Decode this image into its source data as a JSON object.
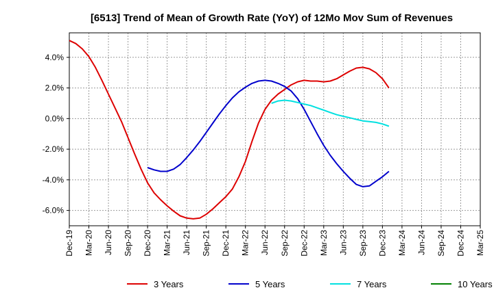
{
  "chart_data": {
    "type": "line",
    "title": "[6513]  Trend of Mean of Growth Rate (YoY) of 12Mo Mov Sum of Revenues",
    "xlabel": "",
    "ylabel": "",
    "x_ticks": [
      "Dec-19",
      "Mar-20",
      "Jun-20",
      "Sep-20",
      "Dec-20",
      "Mar-21",
      "Jun-21",
      "Sep-21",
      "Dec-21",
      "Mar-22",
      "Jun-22",
      "Sep-22",
      "Dec-22",
      "Mar-23",
      "Jun-23",
      "Sep-23",
      "Dec-23",
      "Mar-24",
      "Jun-24",
      "Sep-24",
      "Dec-24",
      "Mar-25"
    ],
    "y_ticks": [
      4.0,
      2.0,
      0.0,
      -2.0,
      -4.0,
      -6.0
    ],
    "y_tick_labels": [
      "4.0%",
      "2.0%",
      "0.0%",
      "-2.0%",
      "-4.0%",
      "-6.0%"
    ],
    "ylim": [
      -7.0,
      5.6
    ],
    "grid": true,
    "legend_position": "bottom",
    "series": [
      {
        "name": "3 Years",
        "color": "#dd0000",
        "points": [
          [
            0,
            5.1
          ],
          [
            1,
            4.9
          ],
          [
            2,
            4.55
          ],
          [
            3,
            4.05
          ],
          [
            4,
            3.35
          ],
          [
            5,
            2.5
          ],
          [
            6,
            1.6
          ],
          [
            7,
            0.7
          ],
          [
            8,
            -0.2
          ],
          [
            9,
            -1.25
          ],
          [
            10,
            -2.3
          ],
          [
            11,
            -3.3
          ],
          [
            12,
            -4.2
          ],
          [
            13,
            -4.85
          ],
          [
            14,
            -5.3
          ],
          [
            15,
            -5.7
          ],
          [
            16,
            -6.05
          ],
          [
            17,
            -6.35
          ],
          [
            18,
            -6.5
          ],
          [
            19,
            -6.55
          ],
          [
            20,
            -6.5
          ],
          [
            21,
            -6.25
          ],
          [
            22,
            -5.9
          ],
          [
            23,
            -5.5
          ],
          [
            24,
            -5.1
          ],
          [
            25,
            -4.6
          ],
          [
            26,
            -3.8
          ],
          [
            27,
            -2.8
          ],
          [
            28,
            -1.5
          ],
          [
            29,
            -0.3
          ],
          [
            30,
            0.6
          ],
          [
            31,
            1.2
          ],
          [
            32,
            1.6
          ],
          [
            33,
            1.9
          ],
          [
            34,
            2.2
          ],
          [
            35,
            2.4
          ],
          [
            36,
            2.5
          ],
          [
            37,
            2.45
          ],
          [
            38,
            2.45
          ],
          [
            39,
            2.4
          ],
          [
            40,
            2.45
          ],
          [
            41,
            2.6
          ],
          [
            42,
            2.85
          ],
          [
            43,
            3.1
          ],
          [
            44,
            3.3
          ],
          [
            45,
            3.35
          ],
          [
            46,
            3.25
          ],
          [
            47,
            3.0
          ],
          [
            48,
            2.6
          ],
          [
            49,
            2.0
          ]
        ]
      },
      {
        "name": "5 Years",
        "color": "#0000cc",
        "points": [
          [
            12,
            -3.2
          ],
          [
            13,
            -3.35
          ],
          [
            14,
            -3.45
          ],
          [
            15,
            -3.45
          ],
          [
            16,
            -3.3
          ],
          [
            17,
            -3.0
          ],
          [
            18,
            -2.55
          ],
          [
            19,
            -2.05
          ],
          [
            20,
            -1.5
          ],
          [
            21,
            -0.9
          ],
          [
            22,
            -0.3
          ],
          [
            23,
            0.3
          ],
          [
            24,
            0.85
          ],
          [
            25,
            1.35
          ],
          [
            26,
            1.75
          ],
          [
            27,
            2.05
          ],
          [
            28,
            2.3
          ],
          [
            29,
            2.45
          ],
          [
            30,
            2.5
          ],
          [
            31,
            2.45
          ],
          [
            32,
            2.3
          ],
          [
            33,
            2.1
          ],
          [
            34,
            1.8
          ],
          [
            35,
            1.3
          ],
          [
            36,
            0.6
          ],
          [
            37,
            -0.2
          ],
          [
            38,
            -1.0
          ],
          [
            39,
            -1.75
          ],
          [
            40,
            -2.4
          ],
          [
            41,
            -2.95
          ],
          [
            42,
            -3.45
          ],
          [
            43,
            -3.9
          ],
          [
            44,
            -4.3
          ],
          [
            45,
            -4.45
          ],
          [
            46,
            -4.4
          ],
          [
            47,
            -4.1
          ],
          [
            48,
            -3.8
          ],
          [
            49,
            -3.45
          ]
        ]
      },
      {
        "name": "7 Years",
        "color": "#00e0e0",
        "points": [
          [
            31,
            1.0
          ],
          [
            32,
            1.15
          ],
          [
            33,
            1.2
          ],
          [
            34,
            1.15
          ],
          [
            35,
            1.05
          ],
          [
            36,
            0.95
          ],
          [
            37,
            0.85
          ],
          [
            38,
            0.7
          ],
          [
            39,
            0.55
          ],
          [
            40,
            0.4
          ],
          [
            41,
            0.25
          ],
          [
            42,
            0.15
          ],
          [
            43,
            0.05
          ],
          [
            44,
            -0.05
          ],
          [
            45,
            -0.15
          ],
          [
            46,
            -0.2
          ],
          [
            47,
            -0.25
          ],
          [
            48,
            -0.35
          ],
          [
            49,
            -0.5
          ]
        ]
      },
      {
        "name": "10 Years",
        "color": "#008000",
        "points": []
      }
    ]
  }
}
